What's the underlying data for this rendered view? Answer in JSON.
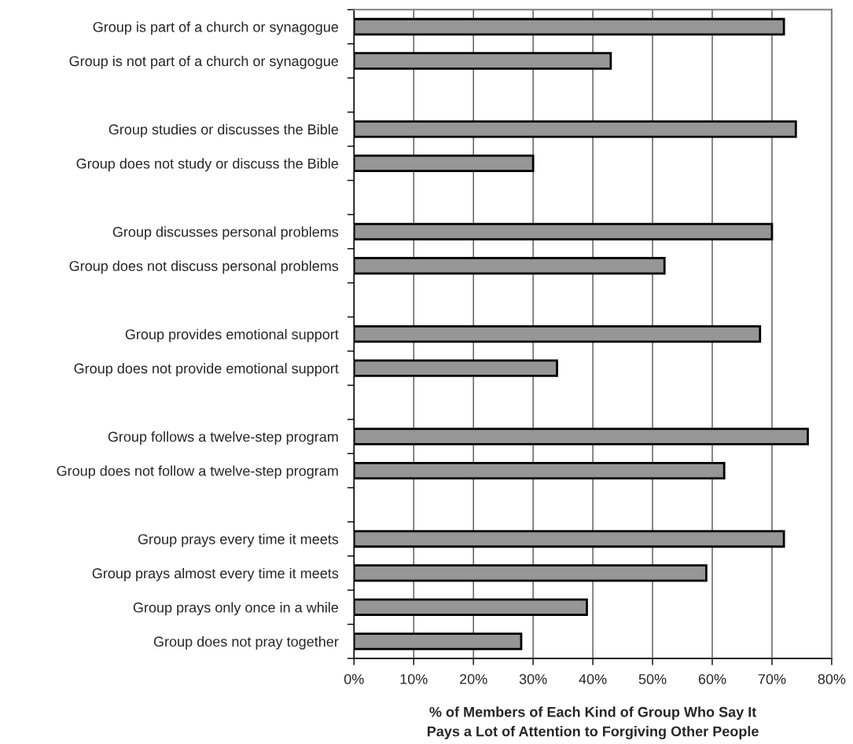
{
  "chart_data": {
    "type": "bar",
    "orientation": "horizontal",
    "categories": [
      "Group is part of a church or synagogue",
      "Group is not part of a church or synagogue",
      null,
      "Group studies or discusses the Bible",
      "Group does not study or discuss the Bible",
      null,
      "Group discusses personal problems",
      "Group does not discuss personal problems",
      null,
      "Group provides emotional support",
      "Group does not provide emotional support",
      null,
      "Group follows a twelve-step program",
      "Group does not follow a twelve-step program",
      null,
      "Group prays every time it meets",
      "Group prays almost every time it meets",
      "Group prays only once in a while",
      "Group does not pray together"
    ],
    "values": [
      72,
      43,
      null,
      74,
      30,
      null,
      70,
      52,
      null,
      68,
      34,
      null,
      76,
      62,
      null,
      72,
      59,
      39,
      28
    ],
    "color": "#969696",
    "xlabel": "% of Members of Each Kind of Group Who Say It\nPays a Lot of Attention to Forgiving Other People",
    "xlim": [
      0,
      80
    ],
    "xticks": [
      {
        "value": 0,
        "label": "0%"
      },
      {
        "value": 10,
        "label": "10%"
      },
      {
        "value": 20,
        "label": "20%"
      },
      {
        "value": 30,
        "label": "30%"
      },
      {
        "value": 40,
        "label": "40%"
      },
      {
        "value": 50,
        "label": "50%"
      },
      {
        "value": 60,
        "label": "60%"
      },
      {
        "value": 70,
        "label": "70%"
      },
      {
        "value": 80,
        "label": "80%"
      }
    ],
    "grid": "x"
  }
}
